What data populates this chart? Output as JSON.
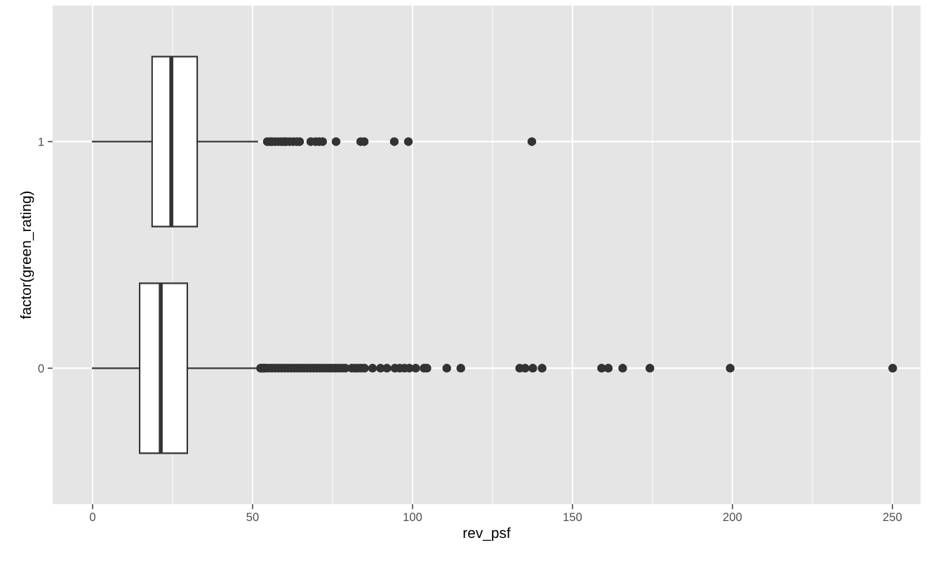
{
  "chart_data": {
    "type": "box",
    "orientation": "horizontal",
    "xlabel": "rev_psf",
    "ylabel": "factor(green_rating)",
    "categories": [
      "1",
      "0"
    ],
    "boxes": [
      {
        "low": 0,
        "q1": 18.6,
        "median": 24.6,
        "q3": 32.7,
        "high": 51.5,
        "outliers": [
          54.6,
          55.5,
          56.1,
          57.0,
          58.0,
          59.0,
          59.8,
          60.5,
          61.6,
          62.7,
          63.8,
          64.7,
          68.2,
          69.7,
          70.8,
          71.9,
          76.1,
          83.8,
          84.9,
          94.3,
          98.7,
          137.3
        ]
      },
      {
        "low": 0,
        "q1": 14.7,
        "median": 21.3,
        "q3": 29.6,
        "high": 51.3,
        "outliers": [
          52.5,
          53,
          53.5,
          54,
          55,
          56,
          57,
          58,
          59,
          60,
          61,
          62,
          63,
          64,
          65,
          66,
          67,
          68,
          69,
          70,
          71,
          72,
          73,
          74,
          75,
          76,
          77,
          78,
          79,
          81,
          82,
          83,
          84,
          85,
          87.5,
          90,
          92,
          94.5,
          96,
          97.5,
          99,
          101,
          103.6,
          104.5,
          110.7,
          115.1,
          133.5,
          135.2,
          137.6,
          140.5,
          159.1,
          161.2,
          165.7,
          174.2,
          199.3,
          250.1
        ]
      }
    ],
    "xlim": [
      -12.5,
      258.8
    ],
    "xticks": [
      0,
      50,
      100,
      150,
      200,
      250
    ],
    "grid": true
  }
}
